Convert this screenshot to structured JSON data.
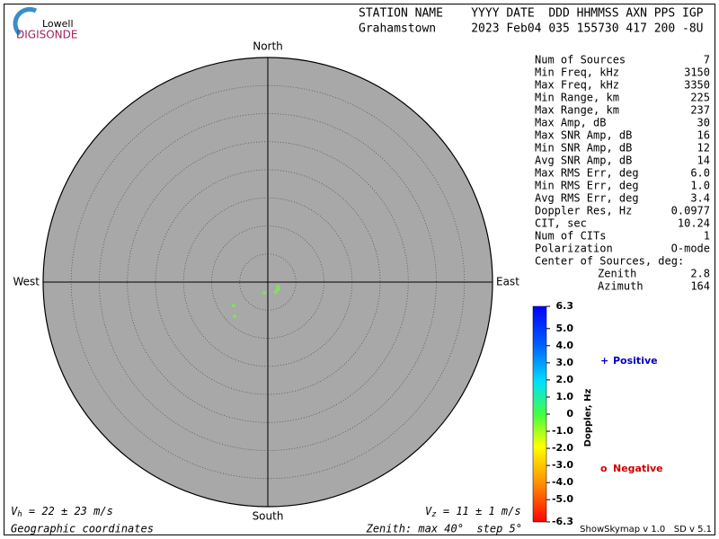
{
  "logo": {
    "top": "Lowell",
    "bottom": "DIGISONDE"
  },
  "header": {
    "labels": "STATION NAME    YYYY DATE  DDD HHMMSS AXN PPS IGP",
    "values": "Grahamstown     2023 Feb04 035 155730 417 200 -8U"
  },
  "stats": [
    [
      "Num of Sources",
      "7"
    ],
    [
      "Min Freq, kHz",
      "3150"
    ],
    [
      "Max Freq, kHz",
      "3350"
    ],
    [
      "Min Range, km",
      "225"
    ],
    [
      "Max Range, km",
      "237"
    ],
    [
      "Max Amp, dB",
      "30"
    ],
    [
      "Max SNR Amp, dB",
      "16"
    ],
    [
      "Min SNR Amp, dB",
      "12"
    ],
    [
      "Avg SNR Amp, dB",
      "14"
    ],
    [
      "Max RMS Err, deg",
      "6.0"
    ],
    [
      "Min RMS Err, deg",
      "1.0"
    ],
    [
      "Avg RMS Err, deg",
      "3.4"
    ],
    [
      "Doppler Res, Hz",
      "0.0977"
    ],
    [
      "CIT, sec",
      "10.24"
    ],
    [
      "Num of CITs",
      "1"
    ],
    [
      "Polarization",
      "O-mode"
    ]
  ],
  "center": {
    "title": "Center of Sources, deg:",
    "rows": [
      [
        "Zenith",
        "2.8"
      ],
      [
        "Azimuth",
        "164"
      ]
    ]
  },
  "footer": {
    "vh": {
      "var": "V",
      "sub": "h",
      "text": " = 22 ± 23 m/s"
    },
    "vz": {
      "var": "V",
      "sub": "z",
      "text": " = 11 ± 1 m/s"
    },
    "coords": "Geographic coordinates",
    "zenith": "Zenith: max 40°  step 5°",
    "version": "ShowSkymap v 1.0   SD v 5.1"
  },
  "chart_data": {
    "type": "skymap",
    "directions": {
      "north": "North",
      "south": "South",
      "east": "East",
      "west": "West"
    },
    "rlim": [
      0,
      40
    ],
    "rticks": [
      5,
      10,
      15,
      20,
      25,
      30,
      35,
      40
    ],
    "points": {
      "color": "#80e060",
      "x": [
        1.8,
        1.6,
        1.9,
        1.4,
        -0.6,
        -6.1,
        -5.9
      ],
      "y": [
        -0.8,
        -1.4,
        -1.3,
        -1.8,
        -1.9,
        -4.2,
        -6.1
      ]
    },
    "colorbar": {
      "label": "Doppler, Hz",
      "lim": [
        -6.3,
        6.3
      ],
      "ticks": [
        6.3,
        {
          "value": 5,
          "label": "5.0"
        },
        {
          "value": 4,
          "label": "4.0"
        },
        {
          "value": 3,
          "label": "3.0"
        },
        {
          "value": 2,
          "label": "2.0"
        },
        {
          "value": 1,
          "label": "1.0"
        },
        0,
        {
          "value": -1,
          "label": "-1.0"
        },
        {
          "value": -2,
          "label": "-2.0"
        },
        {
          "value": -3,
          "label": "-3.0"
        },
        {
          "value": -4,
          "label": "-4.0"
        },
        {
          "value": -5,
          "label": "-5.0"
        },
        -6.3
      ]
    },
    "legend": {
      "positive": {
        "symbol": "+",
        "label": "Positive",
        "color": "#0000c0"
      },
      "negative": {
        "symbol": "o",
        "label": "Negative",
        "color": "#d00000"
      }
    }
  }
}
